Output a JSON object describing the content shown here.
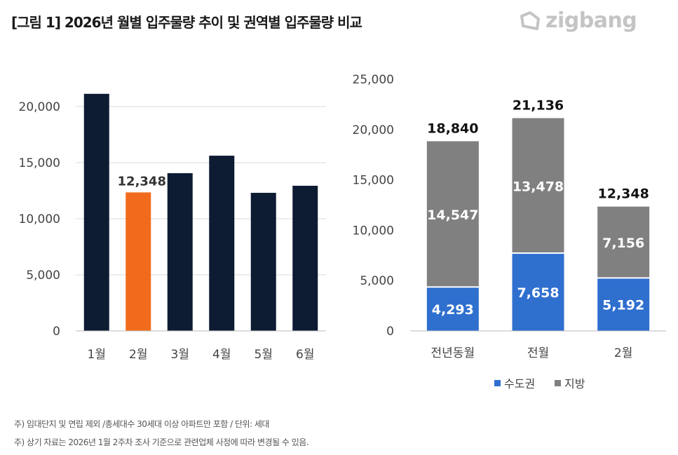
{
  "header": {
    "title": "[그림 1] 2026년 월별 입주물량 추이 및 권역별 입주물량 비교",
    "logo": "zigbang"
  },
  "colors": {
    "dark": "#0d1b33",
    "highlight": "#f26b1d",
    "capital": "#2f6fce",
    "regional": "#808080",
    "grid": "#d9d9d9"
  },
  "chart_data": [
    {
      "type": "bar",
      "title": "월별 입주물량",
      "categories": [
        "1월",
        "2월",
        "3월",
        "4월",
        "5월",
        "6월"
      ],
      "values": [
        21136,
        12348,
        14060,
        15620,
        12310,
        12940
      ],
      "highlight_index": 1,
      "data_labels": {
        "1": "12,348"
      },
      "ylim": [
        0,
        25000
      ],
      "yticks": [
        0,
        5000,
        10000,
        15000,
        20000
      ],
      "ytick_labels": [
        "0",
        "5,000",
        "10,000",
        "15,000",
        "20,000"
      ],
      "grid": true
    },
    {
      "type": "bar",
      "stacked": true,
      "title": "권역별 입주물량",
      "categories": [
        "전년동월",
        "전월",
        "2월"
      ],
      "series": [
        {
          "name": "수도권",
          "values": [
            4293,
            7658,
            5192
          ],
          "labels": [
            "4,293",
            "7,658",
            "5,192"
          ]
        },
        {
          "name": "지방",
          "values": [
            14547,
            13478,
            7156
          ],
          "labels": [
            "14,547",
            "13,478",
            "7,156"
          ]
        }
      ],
      "totals": [
        18840,
        21136,
        12348
      ],
      "total_labels": [
        "18,840",
        "21,136",
        "12,348"
      ],
      "ylim": [
        0,
        25000
      ],
      "yticks": [
        0,
        5000,
        10000,
        15000,
        20000,
        25000
      ],
      "ytick_labels": [
        "0",
        "5,000",
        "10,000",
        "15,000",
        "20,000",
        "25,000"
      ],
      "legend": "bottom"
    }
  ],
  "notes": [
    "주) 임대단지 및 연립 제외 /총세대수 30세대 이상 아파트만 포함 / 단위: 세대",
    "주) 상기 자료는 2026년 1월 2주차 조사 기준으로 관련업체 사정에 따라 변경될 수 있음."
  ]
}
